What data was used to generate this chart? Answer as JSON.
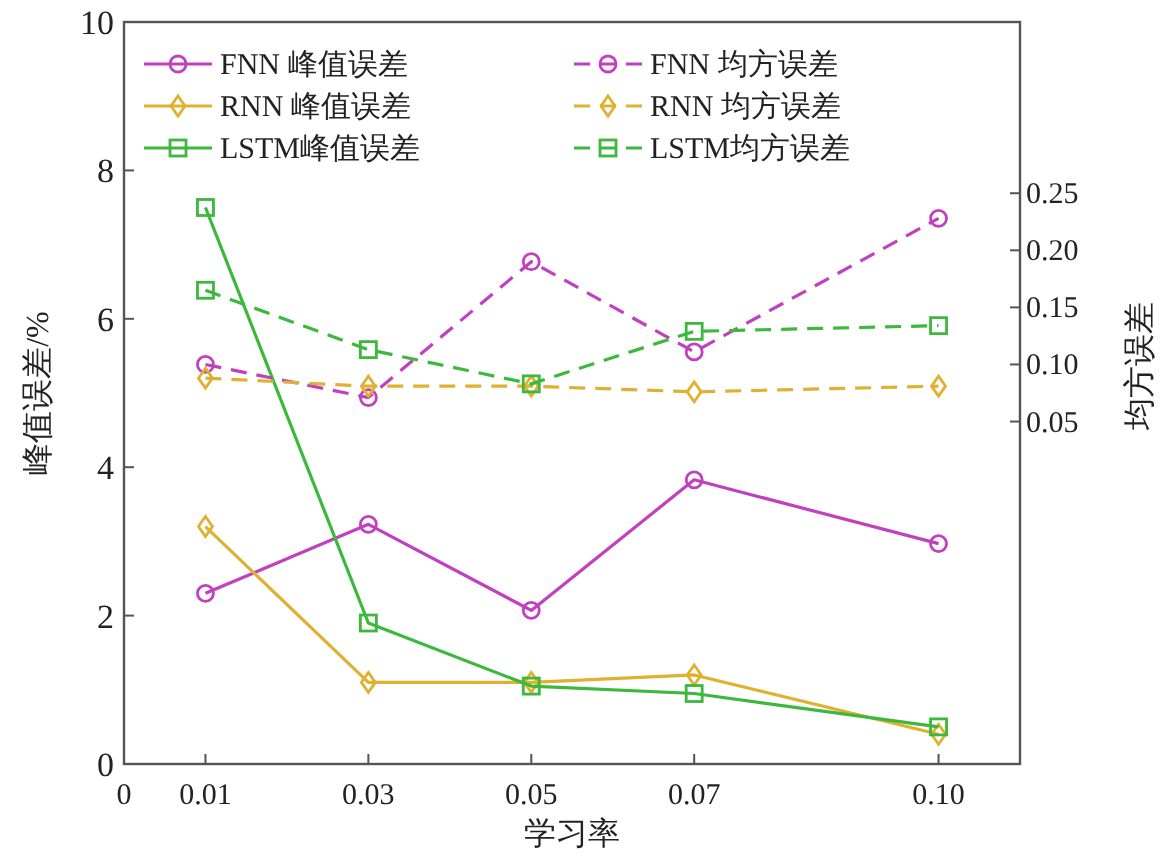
{
  "chart_data": {
    "type": "line",
    "xlabel": "学习率",
    "ylabel": "峰值误差/%",
    "y2label": "均方误差",
    "x": [
      0.01,
      0.03,
      0.05,
      0.07,
      0.1
    ],
    "xlim": [
      0,
      0.11
    ],
    "xticks": [
      0,
      0.01,
      0.03,
      0.05,
      0.07,
      {
        "value": 0.1,
        "label": "0.10"
      }
    ],
    "ylim": [
      0,
      10
    ],
    "yticks": [
      0,
      2,
      4,
      6,
      8,
      10
    ],
    "y2lim": [
      -0.25,
      0.4
    ],
    "y2ticks": [
      {
        "value": 0.05,
        "label": "0.05"
      },
      {
        "value": 0.1,
        "label": "0.10"
      },
      {
        "value": 0.15,
        "label": "0.15"
      },
      {
        "value": 0.2,
        "label": "0.20"
      },
      {
        "value": 0.25,
        "label": "0.25"
      }
    ],
    "legend": "top",
    "series": [
      {
        "name": "FNN 峰值误差",
        "color": "#c040c0",
        "marker": "circle",
        "line_style": "solid",
        "values": [
          2.3,
          3.23,
          2.07,
          3.83,
          2.97
        ]
      },
      {
        "name": "RNN 峰值误差",
        "color": "#e0b030",
        "marker": "diamond",
        "line_style": "solid",
        "values": [
          3.2,
          1.1,
          1.1,
          1.2,
          0.4
        ]
      },
      {
        "name": "LSTM峰值误差",
        "color": "#3cb83c",
        "marker": "square",
        "line_style": "solid",
        "values": [
          7.5,
          1.9,
          1.05,
          0.95,
          0.5
        ]
      },
      {
        "name": "FNN 均方误差",
        "color": "#c040c0",
        "marker": "circle",
        "line_style": "dashed",
        "axis": "y2",
        "values": [
          0.1,
          0.071,
          0.19,
          0.111,
          0.228
        ]
      },
      {
        "name": "RNN 均方误差",
        "color": "#e0b030",
        "marker": "diamond",
        "line_style": "dashed",
        "axis": "y2",
        "values": [
          0.088,
          0.081,
          0.081,
          0.076,
          0.081
        ]
      },
      {
        "name": "LSTM均方误差",
        "color": "#3cb83c",
        "marker": "square",
        "line_style": "dashed",
        "axis": "y2",
        "values": [
          0.165,
          0.113,
          0.083,
          0.129,
          0.134
        ]
      }
    ]
  }
}
